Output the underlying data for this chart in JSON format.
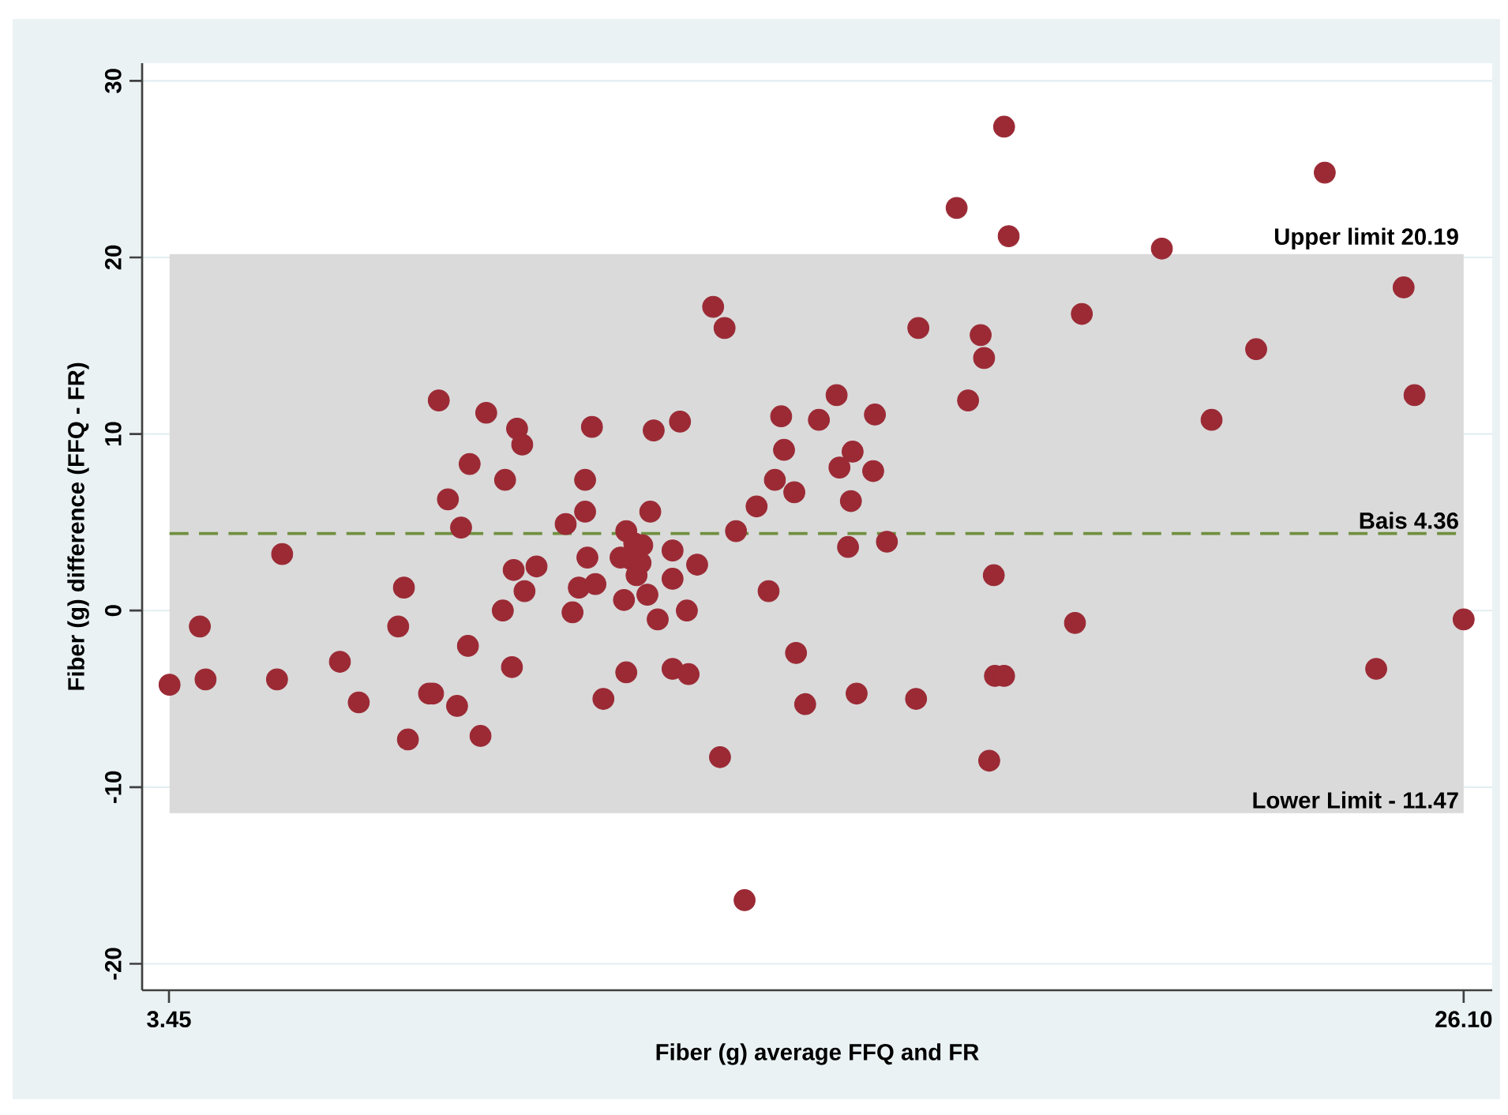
{
  "chart_data": {
    "type": "scatter",
    "xlabel": "Fiber (g) average FFQ and FR",
    "ylabel": "Fiber (g) difference (FFQ - FR)",
    "x": [
      3.46,
      3.99,
      4.09,
      5.34,
      5.43,
      6.44,
      6.77,
      7.46,
      7.56,
      7.63,
      8.0,
      8.07,
      8.17,
      8.33,
      8.49,
      8.56,
      8.68,
      8.71,
      8.9,
      9.0,
      9.29,
      9.33,
      9.45,
      9.48,
      9.54,
      9.63,
      9.67,
      9.88,
      10.39,
      10.51,
      10.62,
      10.73,
      10.73,
      10.77,
      10.85,
      10.91,
      11.05,
      11.35,
      11.41,
      11.45,
      11.45,
      11.54,
      11.59,
      11.63,
      11.7,
      11.73,
      11.82,
      11.87,
      11.93,
      12.0,
      12.26,
      12.26,
      12.26,
      12.39,
      12.51,
      12.54,
      12.69,
      12.97,
      13.09,
      13.17,
      13.37,
      13.52,
      13.73,
      13.94,
      14.05,
      14.16,
      14.21,
      14.39,
      14.42,
      14.58,
      14.82,
      15.13,
      15.18,
      15.33,
      15.38,
      15.41,
      15.48,
      15.77,
      15.8,
      16.01,
      16.52,
      16.56,
      17.23,
      17.43,
      17.65,
      17.71,
      17.8,
      17.88,
      17.9,
      18.06,
      18.06,
      18.14,
      19.3,
      19.42,
      20.82,
      21.69,
      22.47,
      23.67,
      24.57,
      25.05,
      25.24,
      26.1
    ],
    "values": [
      -4.2,
      -0.9,
      -3.9,
      -3.9,
      3.2,
      -2.9,
      -5.2,
      -0.9,
      1.3,
      -7.3,
      -4.7,
      -4.7,
      11.9,
      6.3,
      -5.4,
      4.7,
      -2.0,
      8.3,
      -7.1,
      11.2,
      0.0,
      7.4,
      -3.2,
      2.3,
      10.3,
      9.4,
      1.1,
      2.5,
      4.9,
      -0.1,
      1.3,
      5.6,
      7.4,
      3.0,
      10.4,
      1.5,
      -5.0,
      3.0,
      0.6,
      4.5,
      -3.5,
      2.9,
      3.8,
      2.0,
      2.7,
      3.7,
      0.9,
      5.6,
      10.2,
      -0.5,
      3.4,
      1.8,
      -3.3,
      10.7,
      0.0,
      -3.6,
      2.6,
      17.2,
      -8.3,
      16.0,
      4.5,
      -16.4,
      5.9,
      1.1,
      7.4,
      11.0,
      9.1,
      6.7,
      -2.4,
      -5.3,
      10.8,
      12.2,
      8.1,
      3.6,
      6.2,
      9.0,
      -4.7,
      7.9,
      11.1,
      3.9,
      -5.0,
      16.0,
      22.8,
      11.9,
      15.6,
      14.3,
      -8.5,
      2.0,
      -3.7,
      -3.7,
      27.4,
      21.2,
      -0.7,
      16.8,
      20.5,
      10.8,
      14.8,
      24.8,
      -3.3,
      18.3,
      12.2,
      -0.5
    ],
    "color": "#9b2a35",
    "marker": "circle",
    "xlim": [
      2.98,
      26.6
    ],
    "ylim": [
      -21.5,
      31
    ],
    "xticks": [
      3.45,
      {
        "value": 26.1,
        "label": "26.10"
      }
    ],
    "yticks": [
      -20,
      -10,
      0,
      10,
      20,
      30
    ],
    "grid": "y",
    "bands": [
      {
        "axis": "y",
        "from": -11.47,
        "to": 20.19,
        "color": "#dadada"
      }
    ],
    "ref_lines": [
      {
        "axis": "y",
        "value": 4.36,
        "label": "Bais 4.36",
        "line_style": "dashed",
        "color": "#6f8f3f"
      }
    ],
    "annotations": [
      {
        "text": "Upper limit 20.19",
        "x": 26.1,
        "y": 20.19
      },
      {
        "text": "Lower Limit - 11.47",
        "x": 26.1,
        "y": -11.47
      }
    ]
  }
}
